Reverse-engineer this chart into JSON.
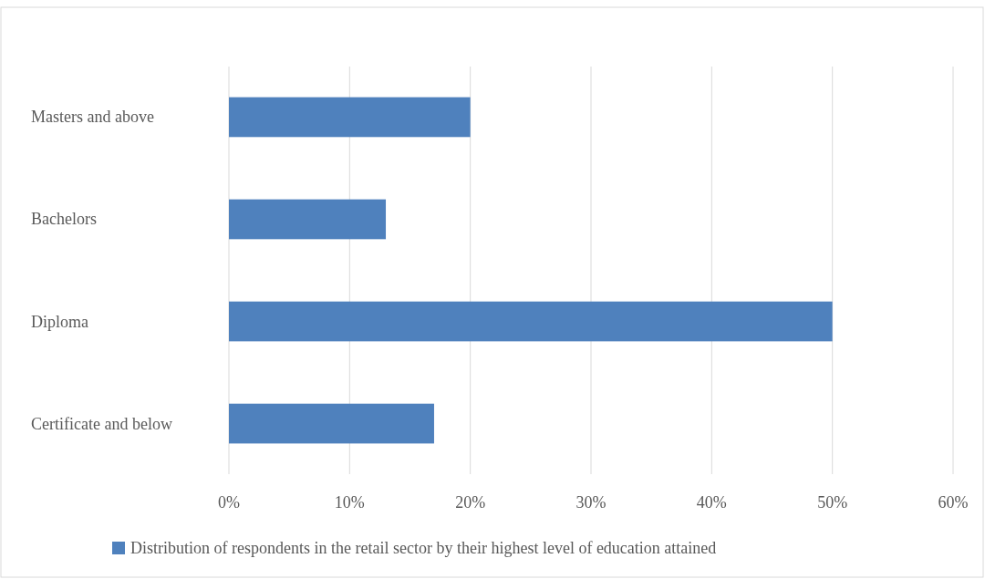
{
  "chart_data": {
    "type": "bar",
    "orientation": "horizontal",
    "categories": [
      "Masters and above",
      "Bachelors",
      "Diploma",
      "Certificate and below"
    ],
    "series": [
      {
        "name": "Distribution of respondents in the retail sector by their highest level of education attained",
        "color": "#4f81bd",
        "values": [
          20,
          13,
          50,
          17
        ]
      }
    ],
    "xlim": [
      0,
      60
    ],
    "xticks": [
      {
        "value": 0,
        "label": "0%"
      },
      {
        "value": 10,
        "label": "10%"
      },
      {
        "value": 20,
        "label": "20%"
      },
      {
        "value": 30,
        "label": "30%"
      },
      {
        "value": 40,
        "label": "40%"
      },
      {
        "value": 50,
        "label": "50%"
      },
      {
        "value": 60,
        "label": "60%"
      }
    ],
    "grid": "x",
    "legend": "bottom"
  }
}
